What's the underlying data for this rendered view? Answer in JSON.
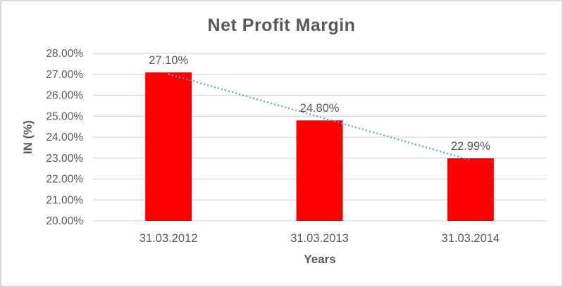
{
  "chart_data": {
    "type": "bar",
    "title": "Net Profit Margin",
    "xlabel": "Years",
    "ylabel": "IN (%)",
    "categories": [
      "31.03.2012",
      "31.03.2013",
      "31.03.2014"
    ],
    "values": [
      27.1,
      24.8,
      22.99
    ],
    "data_labels": [
      "27.10%",
      "24.80%",
      "22.99%"
    ],
    "ylim": [
      20,
      28
    ],
    "ytick_step": 1,
    "yticks": [
      "20.00%",
      "21.00%",
      "22.00%",
      "23.00%",
      "24.00%",
      "25.00%",
      "26.00%",
      "27.00%",
      "28.00%"
    ],
    "grid": true,
    "legend": "none",
    "bar_color": "#ff0000",
    "trendline": {
      "type": "linear",
      "style": "dotted",
      "color": "#5b9bd5"
    },
    "gridline_color": "#d9d9d9",
    "text_color": "#595959"
  }
}
